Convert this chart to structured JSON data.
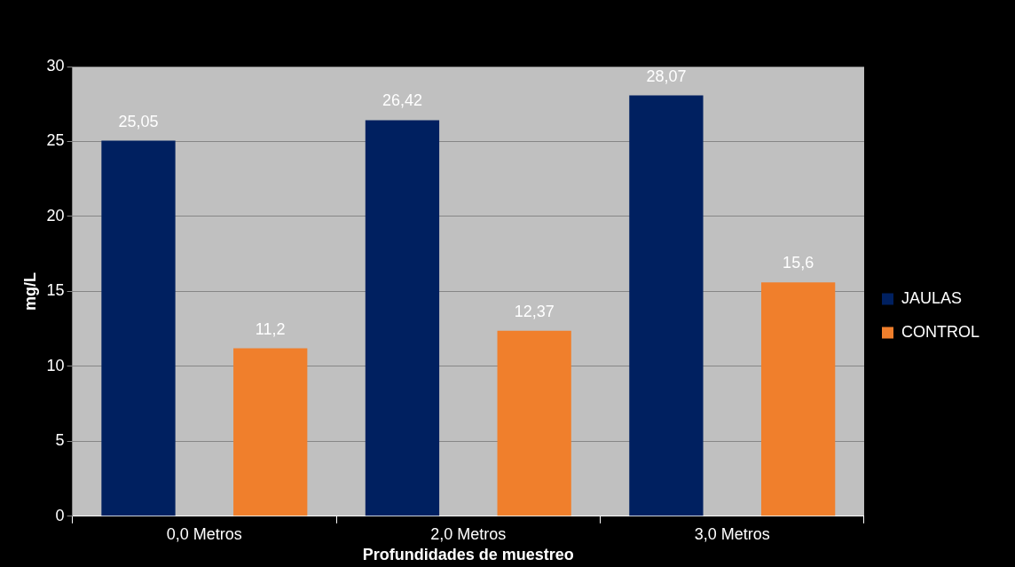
{
  "chart_data": {
    "type": "bar",
    "xlabel": "Profundidades de muestreo",
    "ylabel": "mg/L",
    "categories": [
      "0,0 Metros",
      "2,0 Metros",
      "3,0 Metros"
    ],
    "series": [
      {
        "name": "JAULAS",
        "color": "#002060",
        "values": [
          25.05,
          26.42,
          28.07
        ],
        "value_labels": [
          "25,05",
          "26,42",
          "28,07"
        ]
      },
      {
        "name": "CONTROL",
        "color": "#f07f2c",
        "values": [
          11.2,
          12.37,
          15.6
        ],
        "value_labels": [
          "11,2",
          "12,37",
          "15,6"
        ]
      }
    ],
    "ylim": [
      0,
      30
    ],
    "yticks": [
      0,
      5,
      10,
      15,
      20,
      25,
      30
    ],
    "grid": "y",
    "legend": "right"
  }
}
